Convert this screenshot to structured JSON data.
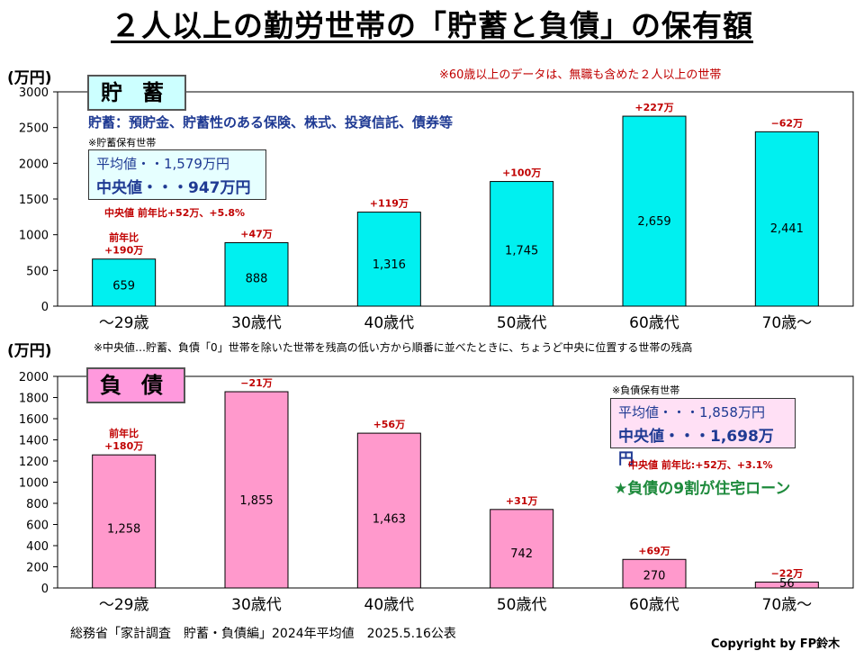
{
  "title": "２人以上の勤労世帯の「貯蓄と負債」の保有額",
  "top_note": "※60歳以上のデータは、無職も含めた２人以上の世帯",
  "median_footnote": "※中央値…貯蓄、負債「0」世帯を除いた世帯を残高の低い方から順番に並べたときに、ちょうど中央に位置する世帯の残高",
  "source": "総務省「家計調査　貯蓄・負債編」2024年平均値　2025.5.16公表",
  "copyright": "Copyright by FP鈴木",
  "savings_panel": {
    "tag": "貯蓄",
    "definition": "貯蓄：預貯金、貯蓄性のある保険、株式、投資信託、債券等",
    "holder_note": "※貯蓄保有世帯",
    "average": "平均値・・1,579万円",
    "median": "中央値・・・947万円",
    "median_change": "中央値 前年比+52万、+5.8%"
  },
  "debt_panel": {
    "tag": "負債",
    "holder_note": "※負債保有世帯",
    "average": "平均値・・・1,858万円",
    "median": "中央値・・・1,698万円",
    "median_change": "中央値 前年比:+52万、+3.1%",
    "green_note": "★負債の9割が住宅ローン"
  },
  "colors": {
    "savings_bar": "#00f0f0",
    "debt_bar": "#ff99cc",
    "change_text": "#c00000",
    "savings_tag": "#ccffff",
    "debt_tag": "#ff99dd",
    "savings_stat": "#e6ffff",
    "debt_stat": "#ffe0f5"
  },
  "chart_data": [
    {
      "type": "bar",
      "title": "貯蓄",
      "ylabel": "(万円)",
      "ylim": [
        0,
        3000
      ],
      "yticks": [
        0,
        500,
        1000,
        1500,
        2000,
        2500,
        3000
      ],
      "categories": [
        "～29歳",
        "30歳代",
        "40歳代",
        "50歳代",
        "60歳代",
        "70歳～"
      ],
      "values": [
        659,
        888,
        1316,
        1745,
        2659,
        2441
      ],
      "value_labels": [
        "659",
        "888",
        "1,316",
        "1,745",
        "2,659",
        "2,441"
      ],
      "change_labels": [
        "前年比\n+190万",
        "+47万",
        "+119万",
        "+100万",
        "+227万",
        "−62万"
      ]
    },
    {
      "type": "bar",
      "title": "負債",
      "ylabel": "(万円)",
      "ylim": [
        0,
        2000
      ],
      "yticks": [
        0,
        200,
        400,
        600,
        800,
        1000,
        1200,
        1400,
        1600,
        1800,
        2000
      ],
      "categories": [
        "～29歳",
        "30歳代",
        "40歳代",
        "50歳代",
        "60歳代",
        "70歳～"
      ],
      "values": [
        1258,
        1855,
        1463,
        742,
        270,
        56
      ],
      "value_labels": [
        "1,258",
        "1,855",
        "1,463",
        "742",
        "270",
        "56"
      ],
      "change_labels": [
        "前年比\n+180万",
        "−21万",
        "+56万",
        "+31万",
        "+69万",
        "−22万"
      ]
    }
  ]
}
